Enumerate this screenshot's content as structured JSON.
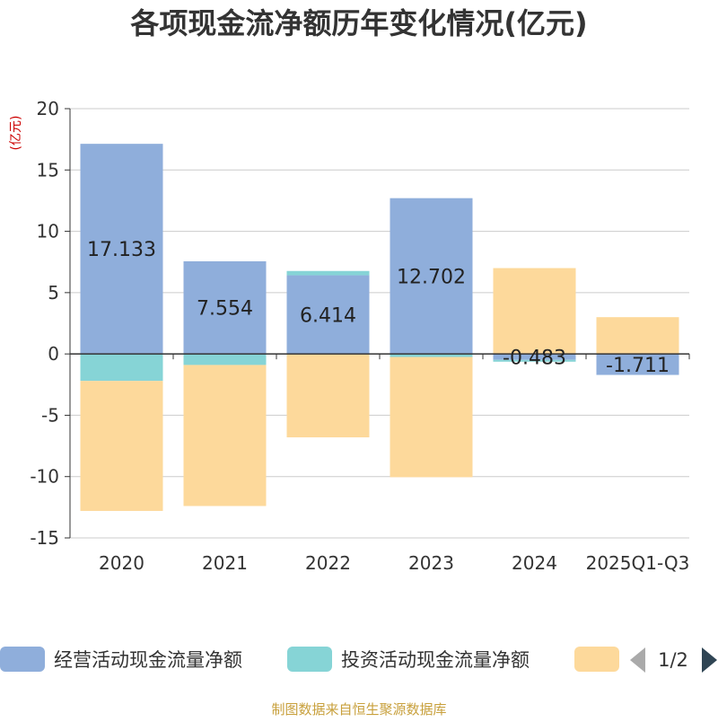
{
  "chart_data": {
    "type": "bar",
    "stacked": true,
    "title": "各项现金流净额历年变化情况(亿元)",
    "ylabel": "(亿元)",
    "xlabel": "",
    "ylim": [
      -15,
      20
    ],
    "yticks": [
      20,
      15,
      10,
      5,
      0,
      -5,
      -10,
      -15
    ],
    "categories": [
      "2020",
      "2021",
      "2022",
      "2023",
      "2024",
      "2025Q1-Q3"
    ],
    "series": [
      {
        "name": "经营活动现金流量净额",
        "color": "#8faedb",
        "values": [
          17.133,
          7.554,
          6.414,
          12.702,
          -0.483,
          -1.711
        ],
        "labels": [
          "17.133",
          "7.554",
          "6.414",
          "12.702",
          "-0.483",
          "-1.711"
        ]
      },
      {
        "name": "投资活动现金流量净额",
        "color": "#86d4d6",
        "values": [
          -2.2,
          -0.9,
          0.35,
          -0.25,
          -0.15,
          0
        ]
      },
      {
        "name": "",
        "color": "#fdd99b",
        "values": [
          -10.6,
          -11.5,
          -6.8,
          -9.8,
          7.0,
          3.0
        ]
      }
    ],
    "legend": {
      "position": "bottom",
      "page": "1/2"
    },
    "source": "制图数据来自恒生聚源数据库"
  },
  "colors": {
    "axis": "#333333",
    "grid": "#cccccc",
    "text": "#333333",
    "ylabel": "#cc0000",
    "source": "#c8a03c",
    "pager_active": "#2f4554",
    "pager_inactive": "#aaaaaa"
  }
}
